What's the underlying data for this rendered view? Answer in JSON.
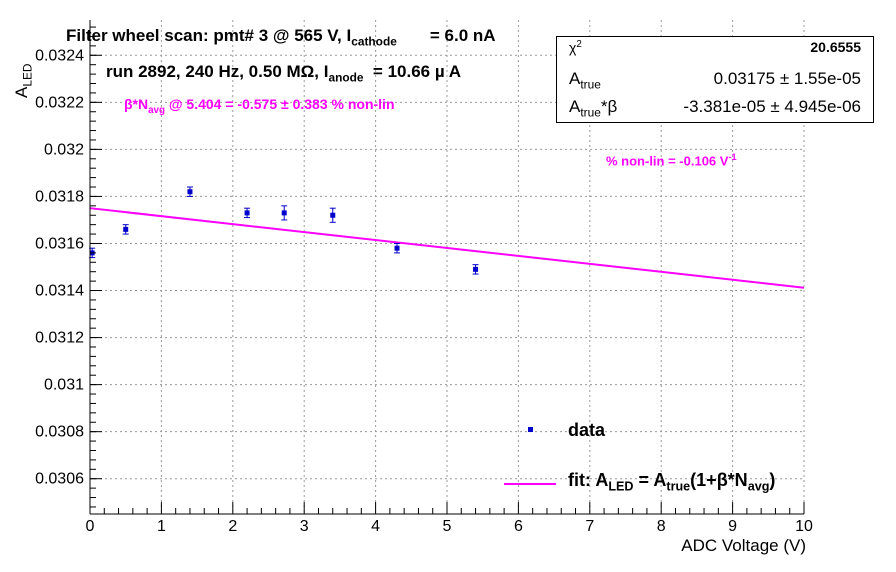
{
  "title_parts": {
    "main": "Filter wheel scan: pmt#   3 @   565 V, I",
    "sub": "cathode",
    "tail": "       = 6.0 nA"
  },
  "run_parts": {
    "main": "run 2892, 240 Hz, 0.50 MΩ, I",
    "sub": "anode",
    "tail": "  = 10.66 µ A"
  },
  "beta_parts": {
    "pre": "β*N",
    "sub": "avg",
    "tail": " @ 5.404 = -0.575 ± 0.383 % non-lin"
  },
  "nonlin_parts": {
    "main": "% non-lin = -0.106 V",
    "sup": "-1"
  },
  "stats": {
    "chi2_label": "χ",
    "chi2_sup": "2",
    "chi2_value": "20.6555",
    "atrue_label": "A",
    "atrue_sub": "true",
    "atrue_value": "0.03175 ± 1.55e-05",
    "atb_label": "A",
    "atb_sub": "true",
    "atb_tail": "*β",
    "atb_value": "-3.381e-05 ± 4.945e-06"
  },
  "legend": {
    "data_label": "data",
    "fit_main": "fit: A",
    "fit_sub1": "LED",
    "fit_mid": " = A",
    "fit_sub2": "true",
    "fit_mid2": "(1+β*N",
    "fit_sub3": "avg",
    "fit_tail": ")"
  },
  "colors": {
    "data": "#0000cc",
    "fit": "#ff00ff",
    "grid": "#999999",
    "axis": "#000000"
  },
  "chart_data": {
    "type": "scatter",
    "title": "Filter wheel scan: pmt#   3 @   565 V, I cathode = 6.0 nA",
    "xlabel": "ADC Voltage (V)",
    "ylabel": "A",
    "ylabel_sub": "LED",
    "xlim": [
      0,
      10
    ],
    "ylim": [
      0.03045,
      0.03255
    ],
    "x_ticks": [
      0,
      1,
      2,
      3,
      4,
      5,
      6,
      7,
      8,
      9,
      10
    ],
    "y_ticks": [
      0.0306,
      0.0308,
      0.031,
      0.0312,
      0.0314,
      0.0316,
      0.0318,
      0.032,
      0.0322,
      0.0324
    ],
    "y_tick_labels": [
      "0.0306",
      "0.0308",
      "0.031",
      "0.0312",
      "0.0314",
      "0.0316",
      "0.0318",
      "0.032",
      "0.0322",
      "0.0324"
    ],
    "grid": true,
    "series": [
      {
        "name": "data",
        "x": [
          0.03,
          0.5,
          1.4,
          2.2,
          2.72,
          3.4,
          4.3,
          5.4
        ],
        "y": [
          0.03156,
          0.03166,
          0.03182,
          0.03173,
          0.03173,
          0.03172,
          0.03158,
          0.03149
        ],
        "yerr": [
          2e-05,
          2e-05,
          2e-05,
          2e-05,
          3e-05,
          3e-05,
          2e-05,
          2e-05
        ]
      }
    ],
    "fit": {
      "name": "fit",
      "a_true": 0.03175,
      "a_true_beta": -3.381e-05
    }
  }
}
